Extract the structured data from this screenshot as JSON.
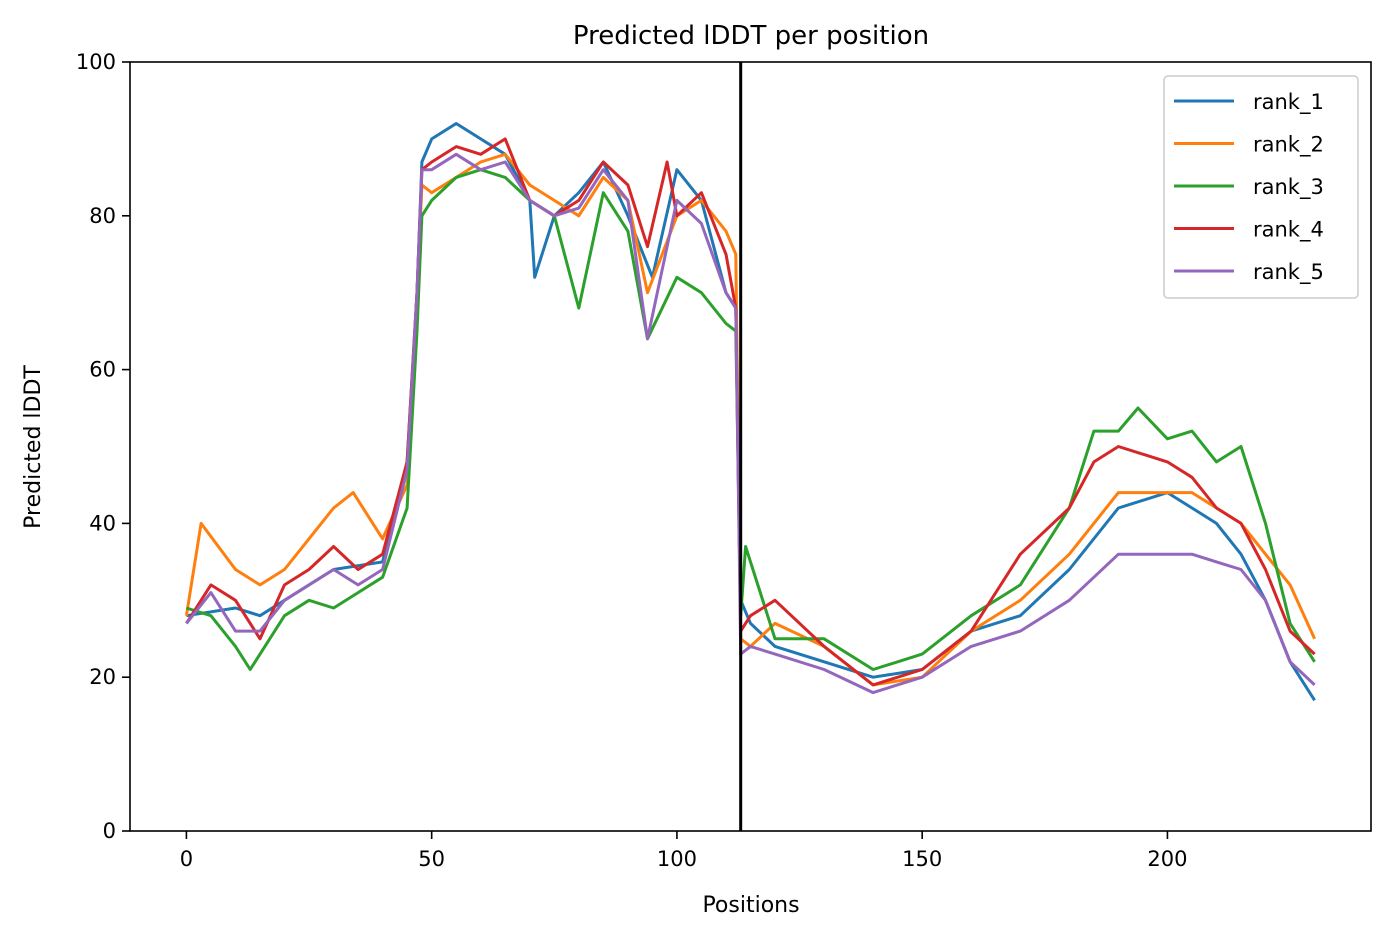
{
  "chart_data": {
    "type": "line",
    "title": "Predicted lDDT per position",
    "xlabel": "Positions",
    "ylabel": "Predicted lDDT",
    "xlim": [
      -11.5,
      241.5
    ],
    "ylim": [
      0,
      100
    ],
    "xticks": [
      0,
      50,
      100,
      150,
      200
    ],
    "yticks": [
      0,
      20,
      40,
      60,
      80,
      100
    ],
    "grid": false,
    "legend_position": "top-right",
    "chain_break_x": 113,
    "series": [
      {
        "name": "rank_1",
        "color": "#1f77b4",
        "x": [
          0,
          10,
          15,
          20,
          30,
          40,
          45,
          47,
          48,
          50,
          55,
          60,
          65,
          70,
          71,
          75,
          80,
          85,
          90,
          95,
          100,
          105,
          110,
          112,
          113,
          115,
          120,
          130,
          140,
          150,
          160,
          170,
          180,
          190,
          200,
          205,
          210,
          215,
          220,
          225,
          230
        ],
        "y": [
          28,
          29,
          28,
          30,
          34,
          35,
          48,
          70,
          87,
          90,
          92,
          90,
          88,
          82,
          72,
          80,
          83,
          87,
          80,
          72,
          86,
          82,
          70,
          68,
          30,
          27,
          24,
          22,
          20,
          21,
          26,
          28,
          34,
          42,
          44,
          42,
          40,
          36,
          30,
          22,
          17
        ]
      },
      {
        "name": "rank_2",
        "color": "#ff7f0e",
        "x": [
          0,
          3,
          10,
          15,
          20,
          25,
          30,
          34,
          40,
          45,
          47,
          48,
          50,
          55,
          60,
          65,
          70,
          75,
          80,
          85,
          90,
          94,
          100,
          105,
          110,
          112,
          113,
          115,
          120,
          130,
          140,
          150,
          160,
          170,
          180,
          190,
          200,
          205,
          210,
          215,
          220,
          225,
          230
        ],
        "y": [
          28,
          40,
          34,
          32,
          34,
          38,
          42,
          44,
          38,
          45,
          70,
          84,
          83,
          85,
          87,
          88,
          84,
          82,
          80,
          85,
          82,
          70,
          80,
          82,
          78,
          75,
          25,
          24,
          27,
          24,
          19,
          20,
          26,
          30,
          36,
          44,
          44,
          44,
          42,
          40,
          36,
          32,
          25
        ]
      },
      {
        "name": "rank_3",
        "color": "#2ca02c",
        "x": [
          0,
          5,
          10,
          13,
          20,
          25,
          30,
          35,
          40,
          45,
          47,
          48,
          50,
          55,
          60,
          65,
          70,
          75,
          80,
          85,
          90,
          94,
          100,
          105,
          110,
          112,
          113,
          114,
          120,
          130,
          140,
          150,
          160,
          170,
          180,
          185,
          190,
          194,
          200,
          205,
          210,
          215,
          220,
          225,
          230
        ],
        "y": [
          29,
          28,
          24,
          21,
          28,
          30,
          29,
          31,
          33,
          42,
          65,
          80,
          82,
          85,
          86,
          85,
          82,
          80,
          68,
          83,
          78,
          64,
          72,
          70,
          66,
          65,
          28,
          37,
          25,
          25,
          21,
          23,
          28,
          32,
          42,
          52,
          52,
          55,
          51,
          52,
          48,
          50,
          40,
          27,
          22
        ]
      },
      {
        "name": "rank_4",
        "color": "#d62728",
        "x": [
          0,
          5,
          10,
          15,
          20,
          25,
          30,
          35,
          40,
          45,
          47,
          48,
          50,
          55,
          60,
          65,
          70,
          75,
          80,
          85,
          90,
          94,
          98,
          100,
          105,
          110,
          112,
          113,
          115,
          120,
          130,
          140,
          150,
          160,
          170,
          180,
          185,
          190,
          200,
          205,
          210,
          215,
          220,
          225,
          230
        ],
        "y": [
          27,
          32,
          30,
          25,
          32,
          34,
          37,
          34,
          36,
          48,
          70,
          86,
          87,
          89,
          88,
          90,
          82,
          80,
          82,
          87,
          84,
          76,
          87,
          80,
          83,
          75,
          68,
          26,
          28,
          30,
          24,
          19,
          21,
          26,
          36,
          42,
          48,
          50,
          48,
          46,
          42,
          40,
          34,
          26,
          23
        ]
      },
      {
        "name": "rank_5",
        "color": "#9467bd",
        "x": [
          0,
          5,
          10,
          15,
          20,
          25,
          30,
          35,
          40,
          45,
          47,
          48,
          50,
          55,
          60,
          65,
          70,
          75,
          80,
          85,
          90,
          94,
          100,
          105,
          110,
          112,
          113,
          115,
          120,
          130,
          140,
          150,
          160,
          170,
          180,
          190,
          200,
          205,
          210,
          215,
          220,
          225,
          230
        ],
        "y": [
          27,
          31,
          26,
          26,
          30,
          32,
          34,
          32,
          34,
          47,
          70,
          86,
          86,
          88,
          86,
          87,
          82,
          80,
          81,
          86,
          82,
          64,
          82,
          79,
          70,
          68,
          23,
          24,
          23,
          21,
          18,
          20,
          24,
          26,
          30,
          36,
          36,
          36,
          35,
          34,
          30,
          22,
          19
        ]
      }
    ]
  }
}
